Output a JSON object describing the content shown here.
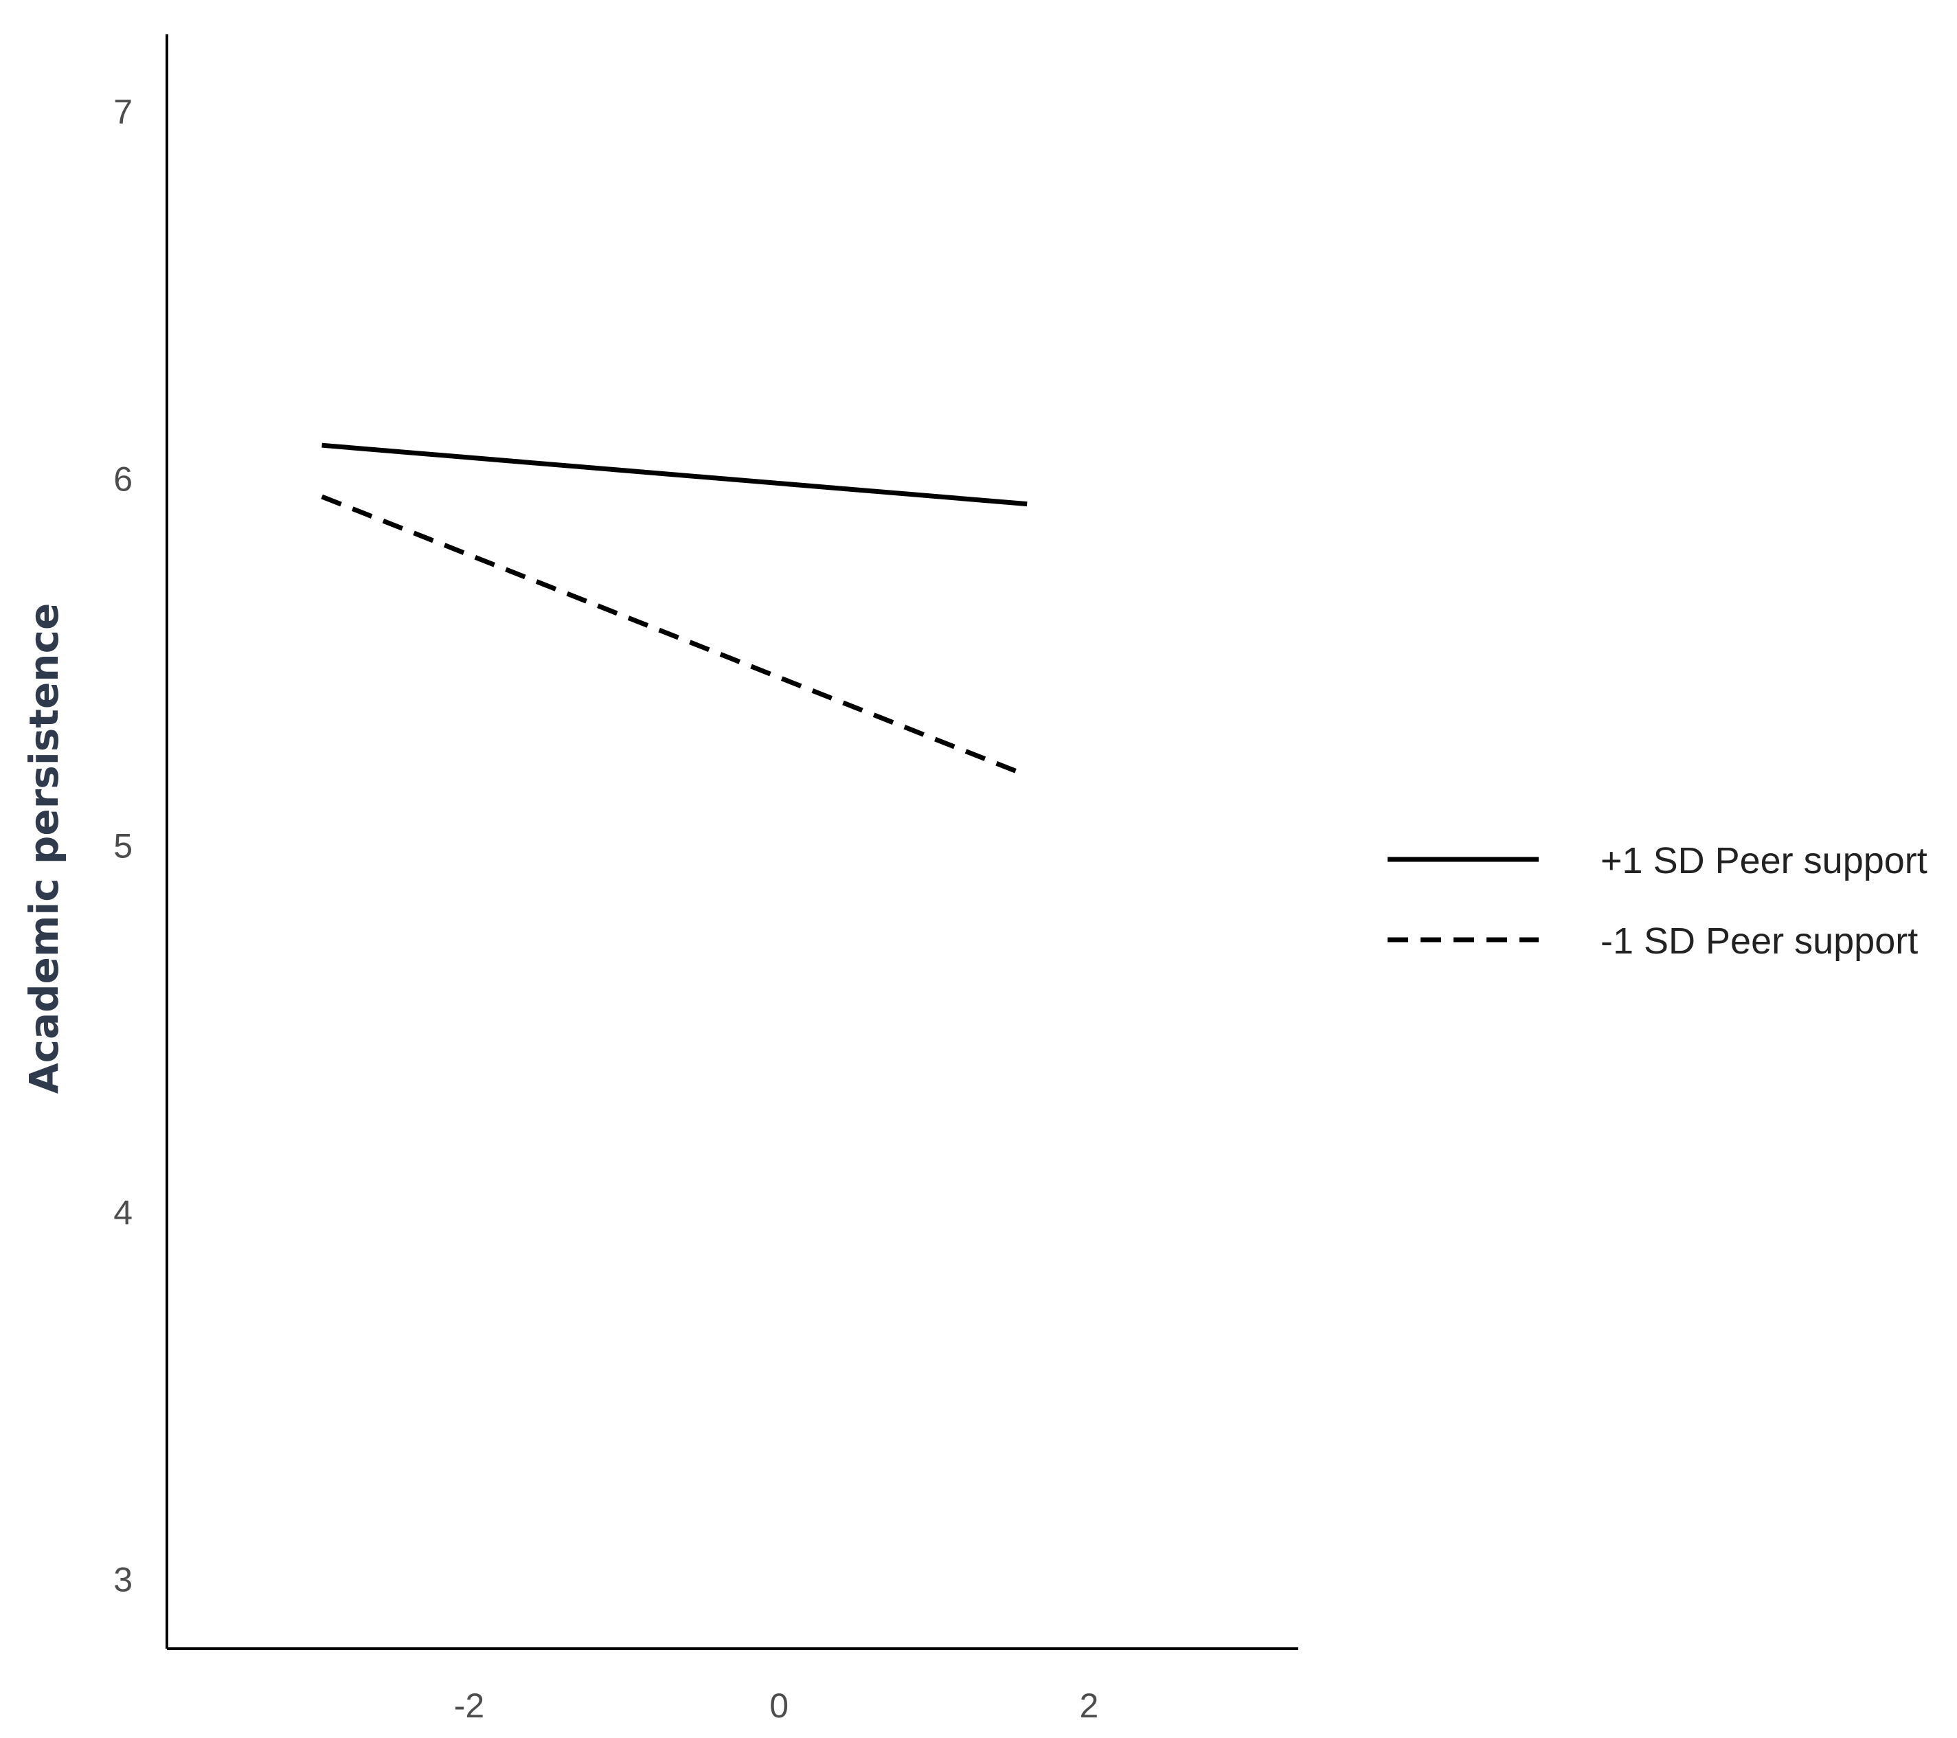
{
  "chart_data": {
    "type": "line",
    "title": "",
    "xlabel": "",
    "ylabel": "Academic persistence",
    "xlim": [
      -3.95,
      3.35
    ],
    "ylim": [
      2.81,
      7.21
    ],
    "xticks": [
      -2,
      0,
      2
    ],
    "yticks": [
      3,
      4,
      5,
      6,
      7
    ],
    "grid": false,
    "legend_position": "right",
    "series": [
      {
        "name": "+1 SD Peer support",
        "line_style": "solid",
        "color": "#000000",
        "x": [
          -2.95,
          1.6
        ],
        "y": [
          6.09,
          5.93
        ]
      },
      {
        "name": "-1 SD Peer support",
        "line_style": "dashed",
        "color": "#000000",
        "x": [
          -2.95,
          1.6
        ],
        "y": [
          5.95,
          5.19
        ]
      }
    ]
  }
}
